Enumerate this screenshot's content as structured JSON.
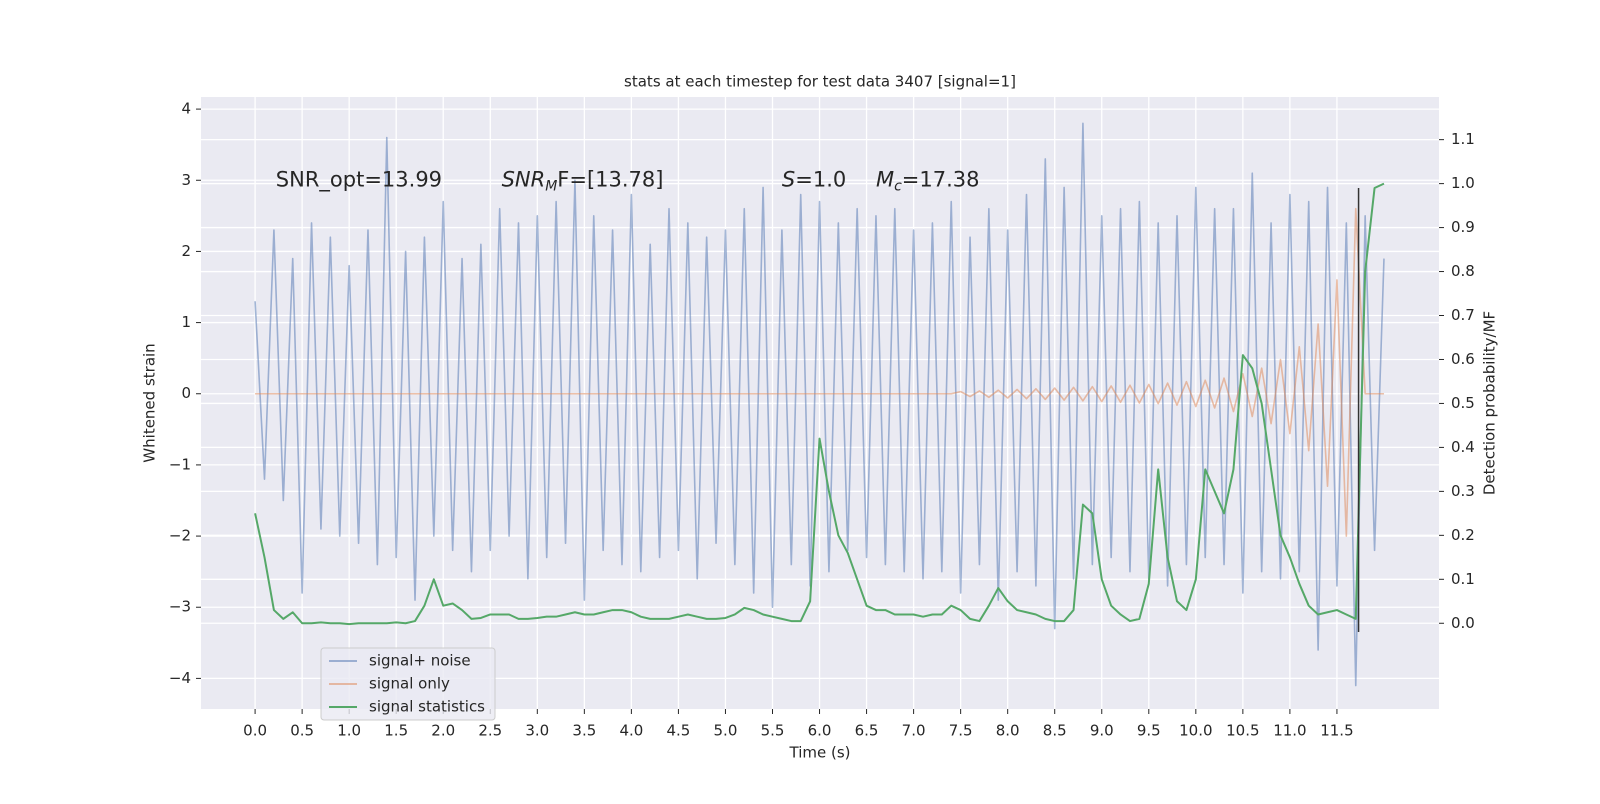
{
  "chart_data": {
    "type": "line",
    "title": "stats at each timestep for test data 3407 [signal=1]",
    "xlabel": "Time (s)",
    "ylabel": "Whitened strain",
    "y2label": "Detection probability/MF",
    "annotations": [
      {
        "text": "SNR_opt=13.99"
      },
      {
        "main": "SNR",
        "sub": "M",
        "after": "F=[13.78]"
      },
      {
        "main": "S",
        "after": "=1.0"
      },
      {
        "main": "M",
        "sub": "c",
        "after": "=17.38"
      }
    ],
    "vertical_line": {
      "x": 11.73,
      "y2": [
        -0.02,
        0.99
      ],
      "color": "#333333"
    },
    "x": [
      0,
      0.1,
      0.2,
      0.3,
      0.4,
      0.5,
      0.6,
      0.7,
      0.8,
      0.9,
      1,
      1.1,
      1.2,
      1.3,
      1.4,
      1.5,
      1.6,
      1.7,
      1.8,
      1.9,
      2,
      2.1,
      2.2,
      2.3,
      2.4,
      2.5,
      2.6,
      2.7,
      2.8,
      2.9,
      3,
      3.1,
      3.2,
      3.3,
      3.4,
      3.5,
      3.6,
      3.7,
      3.8,
      3.9,
      4,
      4.1,
      4.2,
      4.3,
      4.4,
      4.5,
      4.6,
      4.7,
      4.8,
      4.9,
      5,
      5.1,
      5.2,
      5.3,
      5.4,
      5.5,
      5.6,
      5.7,
      5.8,
      5.9,
      6,
      6.1,
      6.2,
      6.3,
      6.4,
      6.5,
      6.6,
      6.7,
      6.8,
      6.9,
      7,
      7.1,
      7.2,
      7.3,
      7.4,
      7.5,
      7.6,
      7.7,
      7.8,
      7.9,
      8,
      8.1,
      8.2,
      8.3,
      8.4,
      8.5,
      8.6,
      8.7,
      8.8,
      8.9,
      9,
      9.1,
      9.2,
      9.3,
      9.4,
      9.5,
      9.6,
      9.7,
      9.8,
      9.9,
      10,
      10.1,
      10.2,
      10.3,
      10.4,
      10.5,
      10.6,
      10.7,
      10.8,
      10.9,
      11,
      11.1,
      11.2,
      11.3,
      11.4,
      11.5,
      11.6,
      11.7,
      11.8,
      11.9,
      12
    ],
    "series": [
      {
        "name": "signal+ noise",
        "color": "#4c72b0",
        "opacity": 0.5,
        "values": [
          1.3,
          -1.2,
          2.3,
          -1.5,
          1.9,
          -2.8,
          2.4,
          -1.9,
          2.2,
          -2.0,
          1.8,
          -2.1,
          2.3,
          -2.4,
          3.6,
          -2.3,
          2.0,
          -2.9,
          2.2,
          -2.0,
          2.7,
          -2.2,
          1.9,
          -2.5,
          2.1,
          -2.2,
          2.6,
          -2.0,
          2.4,
          -2.6,
          2.5,
          -2.3,
          2.7,
          -2.1,
          3.0,
          -2.9,
          2.5,
          -2.2,
          2.3,
          -2.4,
          2.8,
          -2.5,
          2.1,
          -2.3,
          2.6,
          -2.2,
          2.4,
          -2.6,
          2.2,
          -2.1,
          2.3,
          -2.4,
          2.6,
          -2.8,
          2.9,
          -3.0,
          2.3,
          -2.4,
          2.8,
          -2.7,
          2.7,
          -2.5,
          2.4,
          -2.2,
          2.6,
          -2.3,
          2.5,
          -2.4,
          2.6,
          -2.5,
          2.3,
          -2.6,
          2.4,
          -2.5,
          2.7,
          -2.8,
          2.2,
          -2.4,
          2.6,
          -2.9,
          2.3,
          -2.5,
          2.8,
          -2.7,
          3.3,
          -3.3,
          2.9,
          -2.6,
          3.8,
          -2.4,
          2.5,
          -2.3,
          2.6,
          -2.5,
          2.7,
          -2.6,
          2.4,
          -2.7,
          2.5,
          -2.4,
          2.9,
          -2.3,
          2.6,
          -2.4,
          2.6,
          -2.8,
          3.1,
          -2.5,
          2.4,
          -2.6,
          2.8,
          -2.5,
          2.7,
          -3.6,
          2.9,
          -2.7,
          2.4,
          -4.1,
          2.5,
          -2.2,
          1.9
        ]
      },
      {
        "name": "signal only",
        "color": "#dd8452",
        "opacity": 0.5,
        "values": [
          0,
          0,
          0,
          0,
          0,
          0,
          0,
          0,
          0,
          0,
          0,
          0,
          0,
          0,
          0,
          0,
          0,
          0,
          0,
          0,
          0,
          0,
          0,
          0,
          0,
          0,
          0,
          0,
          0,
          0,
          0,
          0,
          0,
          0,
          0,
          0,
          0,
          0,
          0,
          0,
          0,
          0,
          0,
          0,
          0,
          0,
          0,
          0,
          0,
          0,
          0,
          0,
          0,
          0,
          0,
          0,
          0,
          0,
          0,
          0,
          0,
          0,
          0,
          0,
          0,
          0,
          0,
          0,
          0,
          0,
          0,
          0,
          0,
          0,
          0,
          0.03,
          -0.04,
          0.04,
          -0.05,
          0.05,
          -0.06,
          0.06,
          -0.07,
          0.07,
          -0.08,
          0.08,
          -0.09,
          0.09,
          -0.1,
          0.1,
          -0.11,
          0.11,
          -0.12,
          0.12,
          -0.13,
          0.13,
          -0.14,
          0.15,
          -0.16,
          0.17,
          -0.18,
          0.19,
          -0.2,
          0.22,
          -0.25,
          0.28,
          -0.32,
          0.36,
          -0.42,
          0.48,
          -0.56,
          0.66,
          -0.8,
          0.98,
          -1.3,
          1.6,
          -2.0,
          2.6,
          0.0,
          0.0,
          0.0
        ]
      },
      {
        "name": "signal statistics",
        "color": "#55a868",
        "opacity": 1,
        "axis": "y2",
        "values": [
          0.25,
          0.15,
          0.03,
          0.01,
          0.025,
          0.0,
          0.0,
          0.002,
          0.0,
          0.0,
          -0.002,
          0.0,
          0.0,
          0.0,
          0.0,
          0.002,
          0.0,
          0.005,
          0.04,
          0.1,
          0.04,
          0.045,
          0.03,
          0.01,
          0.012,
          0.02,
          0.02,
          0.02,
          0.01,
          0.01,
          0.012,
          0.015,
          0.015,
          0.02,
          0.025,
          0.02,
          0.02,
          0.025,
          0.03,
          0.03,
          0.025,
          0.015,
          0.01,
          0.01,
          0.01,
          0.015,
          0.02,
          0.015,
          0.01,
          0.01,
          0.012,
          0.02,
          0.035,
          0.03,
          0.02,
          0.015,
          0.01,
          0.005,
          0.005,
          0.05,
          0.42,
          0.3,
          0.2,
          0.16,
          0.1,
          0.04,
          0.03,
          0.03,
          0.02,
          0.02,
          0.02,
          0.015,
          0.02,
          0.02,
          0.04,
          0.03,
          0.01,
          0.005,
          0.04,
          0.08,
          0.05,
          0.03,
          0.025,
          0.02,
          0.01,
          0.005,
          0.005,
          0.03,
          0.27,
          0.25,
          0.1,
          0.04,
          0.02,
          0.005,
          0.01,
          0.09,
          0.35,
          0.15,
          0.05,
          0.03,
          0.1,
          0.35,
          0.3,
          0.25,
          0.35,
          0.61,
          0.58,
          0.5,
          0.35,
          0.2,
          0.15,
          0.09,
          0.04,
          0.02,
          0.025,
          0.03,
          0.02,
          0.01,
          0.8,
          0.99,
          1.0
        ]
      }
    ],
    "xlim": [
      -0.575,
      12.585
    ],
    "xticks": [
      {
        "value": 0,
        "label": "0.0"
      },
      0.5,
      {
        "value": 1,
        "label": "1.0"
      },
      1.5,
      {
        "value": 2,
        "label": "2.0"
      },
      2.5,
      {
        "value": 3,
        "label": "3.0"
      },
      3.5,
      {
        "value": 4,
        "label": "4.0"
      },
      4.5,
      {
        "value": 5,
        "label": "5.0"
      },
      5.5,
      {
        "value": 6,
        "label": "6.0"
      },
      6.5,
      {
        "value": 7,
        "label": "7.0"
      },
      7.5,
      {
        "value": 8,
        "label": "8.0"
      },
      8.5,
      {
        "value": 9,
        "label": "9.0"
      },
      9.5,
      {
        "value": 10,
        "label": "10.0"
      },
      10.5,
      {
        "value": 11,
        "label": "11.0"
      },
      11.5
    ],
    "ylim": [
      -4.43,
      4.17
    ],
    "yticks": [
      {
        "value": -4,
        "label": "−4"
      },
      {
        "value": -3,
        "label": "−3"
      },
      {
        "value": -2,
        "label": "−2"
      },
      {
        "value": -1,
        "label": "−1"
      },
      0,
      1,
      2,
      3,
      4
    ],
    "y2lim": [
      -0.195,
      1.197
    ],
    "y2ticks": [
      {
        "value": 0,
        "label": "0.0"
      },
      0.1,
      0.2,
      0.3,
      0.4,
      0.5,
      0.6,
      0.7,
      0.8,
      0.9,
      {
        "value": 1,
        "label": "1.0"
      },
      1.1
    ],
    "grid": true,
    "legend": "lower left",
    "background": "#eaeaf2"
  }
}
